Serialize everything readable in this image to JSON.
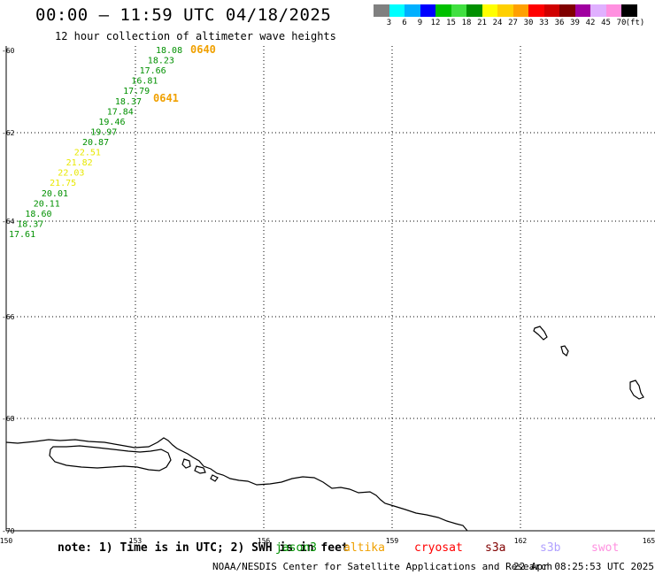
{
  "title": "00:00 – 11:59 UTC 04/18/2025",
  "subtitle": "12 hour collection of altimeter wave heights",
  "colorbar": {
    "colors": [
      "#808080",
      "#00ffff",
      "#00b0ff",
      "#0000ff",
      "#00c000",
      "#40e040",
      "#009000",
      "#ffff00",
      "#ffd000",
      "#ffa000",
      "#ff0000",
      "#d00000",
      "#800000",
      "#a000a0",
      "#e0b0ff",
      "#ff90e0",
      "#000000"
    ],
    "labels": [
      "3",
      "6",
      "9",
      "12",
      "15",
      "18",
      "21",
      "24",
      "27",
      "30",
      "33",
      "36",
      "39",
      "42",
      "45",
      "70",
      "(ft)"
    ]
  },
  "map": {
    "lat_labels": [
      "-60",
      "-62",
      "-64",
      "-66",
      "-68",
      "-70"
    ],
    "lon_labels": [
      "150",
      "153",
      "156",
      "159",
      "162",
      "165"
    ],
    "pass_labels": [
      "0640",
      "0641"
    ],
    "pass_color": "#f0a000",
    "wave_points": [
      {
        "v": "18.08",
        "c": "#009000"
      },
      {
        "v": "18.23",
        "c": "#009000"
      },
      {
        "v": "17.66",
        "c": "#009000"
      },
      {
        "v": "16.81",
        "c": "#009000"
      },
      {
        "v": "17.79",
        "c": "#009000"
      },
      {
        "v": "18.37",
        "c": "#009000"
      },
      {
        "v": "17.84",
        "c": "#009000"
      },
      {
        "v": "19.46",
        "c": "#009000"
      },
      {
        "v": "19.97",
        "c": "#009000"
      },
      {
        "v": "20.87",
        "c": "#009000"
      },
      {
        "v": "22.51",
        "c": "#e8e800"
      },
      {
        "v": "21.82",
        "c": "#e8e800"
      },
      {
        "v": "22.03",
        "c": "#e8e800"
      },
      {
        "v": "21.75",
        "c": "#e8e800"
      },
      {
        "v": "20.01",
        "c": "#009000"
      },
      {
        "v": "20.11",
        "c": "#009000"
      },
      {
        "v": "18.60",
        "c": "#009000"
      },
      {
        "v": "18.37",
        "c": "#009000"
      },
      {
        "v": "17.61",
        "c": "#009000"
      }
    ]
  },
  "footer": {
    "note": "note: 1) Time is in UTC; 2) SWH is in feet",
    "satellites": [
      {
        "name": "jason3",
        "color": "#009000"
      },
      {
        "name": "altika",
        "color": "#f0a000"
      },
      {
        "name": "cryosat",
        "color": "#ff0000"
      },
      {
        "name": "s3a",
        "color": "#800000"
      },
      {
        "name": "s3b",
        "color": "#b0a0ff"
      },
      {
        "name": "swot",
        "color": "#ff90e0"
      }
    ],
    "credit": "NOAA/NESDIS Center for Satellite Applications and Research",
    "timestamp": "22 Apr 08:25:53 UTC 2025"
  }
}
